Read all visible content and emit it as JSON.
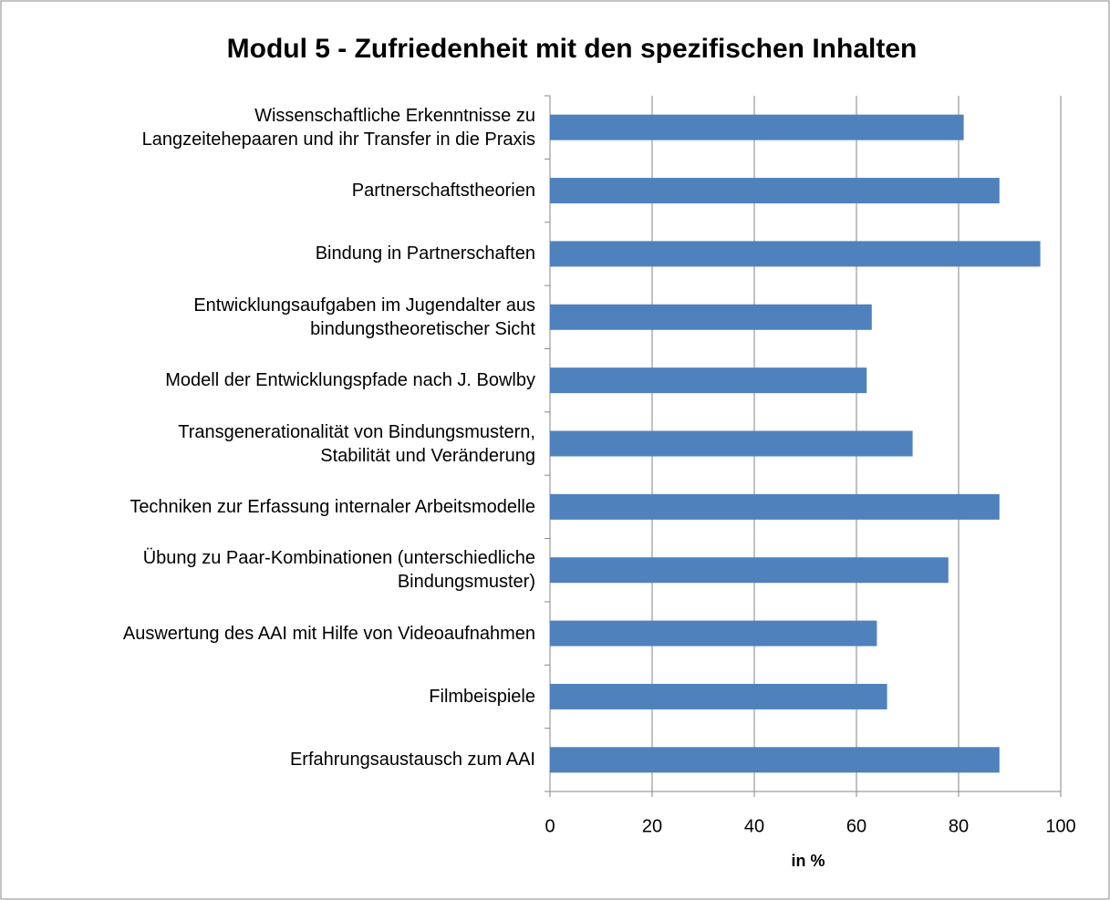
{
  "chart_data": {
    "type": "barh",
    "title": "Modul 5 - Zufriedenheit mit den spezifischen Inhalten",
    "xlabel": "in %",
    "categories": [
      "Wissenschaftliche Erkenntnisse zu\nLangzeitehepaaren und ihr Transfer in die Praxis",
      "Partnerschaftstheorien",
      "Bindung in Partnerschaften",
      "Entwicklungsaufgaben im Jugendalter aus\nbindungstheoretischer Sicht",
      "Modell der Entwicklungspfade nach J. Bowlby",
      "Transgenerationalität von Bindungsmustern,\nStabilität und Veränderung",
      "Techniken zur Erfassung internaler Arbeitsmodelle",
      "Übung zu Paar-Kombinationen (unterschiedliche\nBindungsmuster)",
      "Auswertung des AAI mit Hilfe von Videoaufnahmen",
      "Filmbeispiele",
      "Erfahrungsaustausch zum AAI"
    ],
    "values": [
      81,
      88,
      96,
      63,
      62,
      71,
      88,
      78,
      64,
      66,
      88
    ],
    "color": "#4f81bd",
    "xlim": [
      0,
      100
    ],
    "xticks": [
      0,
      20,
      40,
      60,
      80,
      100
    ],
    "grid": true
  }
}
